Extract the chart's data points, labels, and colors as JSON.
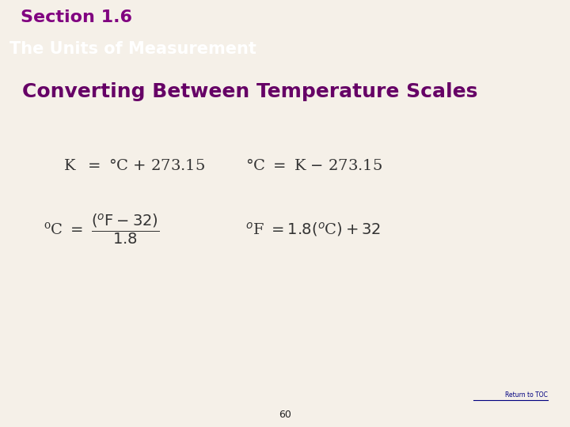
{
  "bg_color": "#f5f0e8",
  "section_title": "Section 1.6",
  "section_title_color": "#800080",
  "accent_color": "#ff00ff",
  "header_bg_color": "#000000",
  "header_text": "The Units of Measurement",
  "header_text_color": "#ffffff",
  "subtitle": "Converting Between Temperature Scales",
  "subtitle_color": "#660066",
  "eq_color": "#333333",
  "footer_text": "Return to TOC",
  "footer_color": "#000080",
  "page_num": "60",
  "bottom_bar_color": "#7a7060"
}
